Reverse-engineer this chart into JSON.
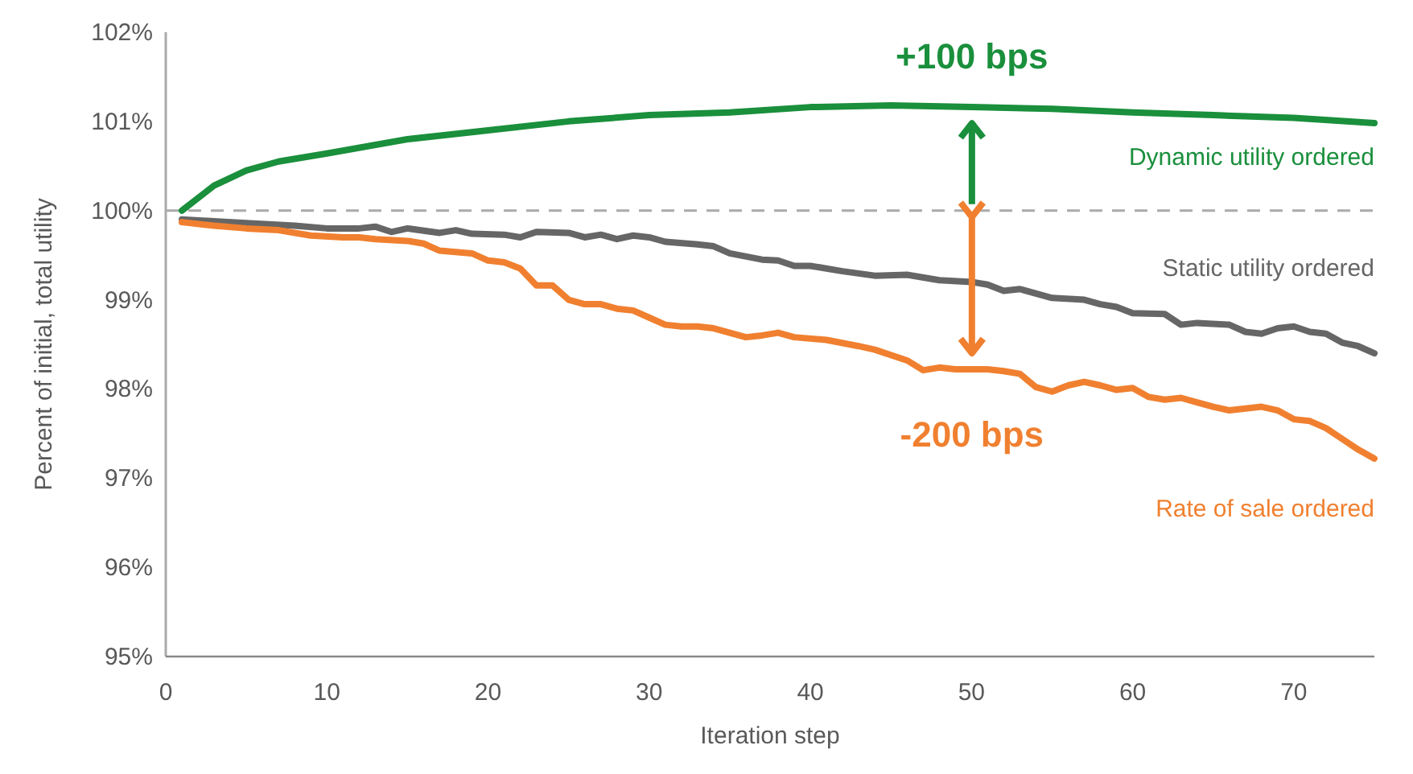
{
  "chart_data": {
    "type": "line",
    "xlabel": "Iteration step",
    "ylabel": "Percent of initial, total utility",
    "xlim": [
      0,
      75
    ],
    "xticks": [
      0,
      10,
      20,
      30,
      40,
      50,
      60,
      70
    ],
    "ylim": [
      95,
      102
    ],
    "yticks": [
      {
        "value": 95,
        "label": "95%"
      },
      {
        "value": 96,
        "label": "96%"
      },
      {
        "value": 97,
        "label": "97%"
      },
      {
        "value": 98,
        "label": "98%"
      },
      {
        "value": 99,
        "label": "99%"
      },
      {
        "value": 100,
        "label": "100%"
      },
      {
        "value": 101,
        "label": "101%"
      },
      {
        "value": 102,
        "label": "102%"
      }
    ],
    "grid": false,
    "legend": false,
    "marker": "none",
    "line_style": "solid",
    "ref_lines": [
      {
        "axis": "y",
        "value": 100,
        "color": "#aaaaaa",
        "line_style": "dashed"
      }
    ],
    "annotations": [
      "+100 bps",
      "-200 bps"
    ],
    "series": [
      {
        "name": "Dynamic utility ordered",
        "color": "#1a8f3c",
        "x": [
          1,
          3,
          5,
          7,
          10,
          15,
          20,
          25,
          30,
          35,
          40,
          45,
          50,
          55,
          60,
          65,
          70,
          75
        ],
        "values": [
          100.0,
          100.28,
          100.45,
          100.55,
          100.64,
          100.8,
          100.9,
          101.0,
          101.07,
          101.1,
          101.16,
          101.18,
          101.16,
          101.14,
          101.1,
          101.07,
          101.04,
          100.98
        ]
      },
      {
        "name": "Static utility ordered",
        "color": "#666666",
        "x": [
          1,
          3,
          5,
          8,
          10,
          12,
          13,
          14,
          15,
          17,
          18,
          19,
          21,
          22,
          23,
          25,
          26,
          27,
          28,
          29,
          30,
          31,
          33,
          34,
          35,
          37,
          38,
          39,
          40,
          42,
          44,
          46,
          48,
          50,
          51,
          52,
          53,
          55,
          57,
          58,
          59,
          60,
          62,
          63,
          64,
          66,
          67,
          68,
          69,
          70,
          71,
          72,
          73,
          74,
          75
        ],
        "values": [
          99.9,
          99.88,
          99.86,
          99.83,
          99.8,
          99.8,
          99.82,
          99.76,
          99.8,
          99.75,
          99.78,
          99.74,
          99.73,
          99.7,
          99.76,
          99.75,
          99.7,
          99.73,
          99.68,
          99.72,
          99.7,
          99.65,
          99.62,
          99.6,
          99.52,
          99.45,
          99.44,
          99.38,
          99.38,
          99.32,
          99.27,
          99.28,
          99.22,
          99.2,
          99.17,
          99.1,
          99.12,
          99.02,
          99.0,
          98.95,
          98.92,
          98.85,
          98.84,
          98.72,
          98.74,
          98.72,
          98.64,
          98.62,
          98.68,
          98.7,
          98.64,
          98.62,
          98.52,
          98.48,
          98.4
        ]
      },
      {
        "name": "Rate of sale ordered",
        "color": "#f08030",
        "x": [
          1,
          3,
          5,
          7,
          9,
          11,
          12,
          13,
          15,
          16,
          17,
          19,
          20,
          21,
          22,
          23,
          24,
          25,
          26,
          27,
          28,
          29,
          30,
          31,
          32,
          33,
          34,
          36,
          37,
          38,
          39,
          41,
          43,
          44,
          46,
          47,
          48,
          49,
          51,
          52,
          53,
          54,
          55,
          56,
          57,
          58,
          59,
          60,
          61,
          62,
          63,
          64,
          65,
          66,
          67,
          68,
          69,
          70,
          71,
          72,
          73,
          74,
          75
        ],
        "values": [
          99.87,
          99.83,
          99.8,
          99.78,
          99.72,
          99.7,
          99.7,
          99.68,
          99.66,
          99.63,
          99.55,
          99.52,
          99.44,
          99.42,
          99.35,
          99.16,
          99.16,
          99.0,
          98.95,
          98.95,
          98.9,
          98.88,
          98.8,
          98.72,
          98.7,
          98.7,
          98.68,
          98.58,
          98.6,
          98.63,
          98.58,
          98.55,
          98.48,
          98.44,
          98.32,
          98.21,
          98.24,
          98.22,
          98.22,
          98.2,
          98.17,
          98.02,
          97.97,
          98.04,
          98.08,
          98.04,
          97.99,
          98.01,
          97.91,
          97.88,
          97.9,
          97.85,
          97.8,
          97.76,
          97.78,
          97.8,
          97.76,
          97.66,
          97.64,
          97.56,
          97.44,
          97.32,
          97.22
        ]
      }
    ]
  }
}
